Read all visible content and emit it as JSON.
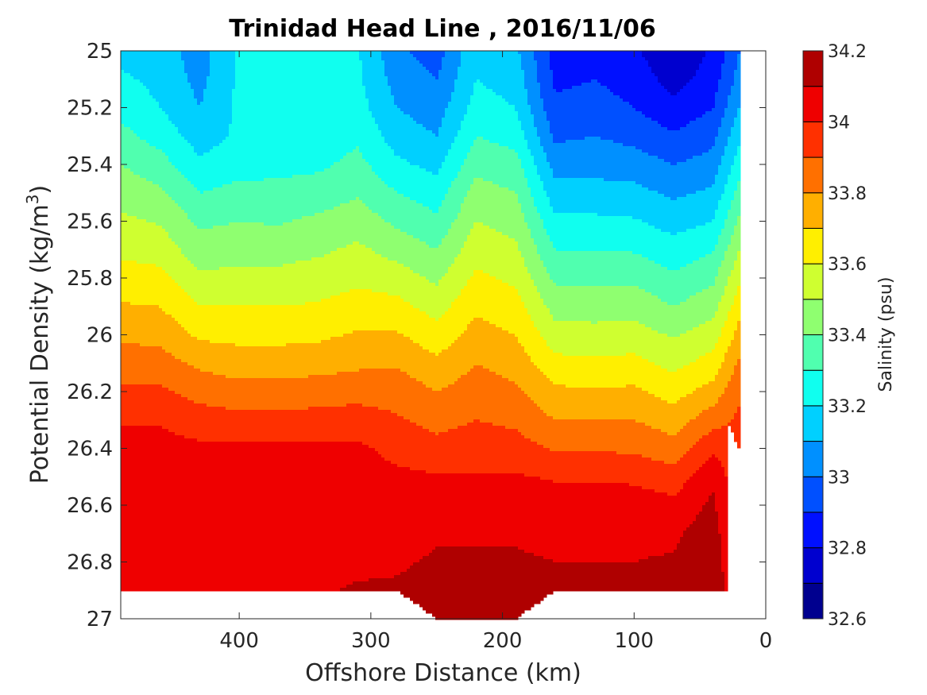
{
  "chart_data": {
    "type": "heatmap",
    "subtype": "filled-contour",
    "title": "Trinidad Head Line , 2016/11/06",
    "xlabel": "Offshore Distance (km)",
    "ylabel": "Potential Density (kg/m",
    "ylabel_sup": "3",
    "ylabel_close": ")",
    "colorbar_label": "Salinity (psu)",
    "xlim": [
      490,
      0
    ],
    "x_reversed": true,
    "ylim": [
      25,
      27
    ],
    "y_reversed": true,
    "x_ticks": [
      400,
      300,
      200,
      100,
      0
    ],
    "y_ticks": [
      "25",
      "25.2",
      "25.4",
      "25.6",
      "25.8",
      "26",
      "26.2",
      "26.4",
      "26.6",
      "26.8",
      "27"
    ],
    "colorbar_range": [
      32.6,
      34.2
    ],
    "colorbar_step": 0.1,
    "colorbar_ticks": [
      "32.6",
      "32.8",
      "33",
      "33.2",
      "33.4",
      "33.6",
      "33.8",
      "34",
      "34.2"
    ],
    "colormap": "jet",
    "level_colors": [
      "#00008F",
      "#0000CF",
      "#0010FF",
      "#0050FF",
      "#0090FF",
      "#00D0FF",
      "#10FFEF",
      "#50FFAF",
      "#8FFF70",
      "#CFFF30",
      "#FFEF00",
      "#FFAF00",
      "#FF7000",
      "#FF3000",
      "#EF0000",
      "#AF0000"
    ],
    "no_data_color": "#ffffff",
    "grid": false,
    "grid_x_km": [
      490,
      460,
      430,
      400,
      370,
      340,
      310,
      280,
      250,
      220,
      190,
      160,
      130,
      100,
      70,
      40,
      20
    ],
    "grid_y_sigma": [
      25.0,
      25.1,
      25.2,
      25.3,
      25.4,
      25.5,
      25.6,
      25.7,
      25.8,
      25.9,
      26.0,
      26.1,
      26.2,
      26.3,
      26.4,
      26.5,
      26.6,
      26.7,
      26.8,
      26.9,
      27.0
    ],
    "bottom_limit_sigma": [
      26.9,
      26.9,
      26.9,
      26.9,
      26.9,
      26.9,
      26.9,
      26.9,
      27.0,
      27.0,
      27.0,
      26.9,
      26.9,
      26.9,
      26.9,
      26.9,
      26.9
    ],
    "shallow_limit_x20": 26.3,
    "salinity_profiles": [
      {
        "x": 490,
        "values": [
          33.16,
          33.22,
          33.27,
          33.33,
          33.4,
          33.46,
          33.52,
          33.58,
          33.64,
          33.71,
          33.78,
          33.85,
          33.92,
          33.99,
          34.03,
          34.04,
          34.05,
          34.05,
          34.06,
          34.08,
          34.08
        ]
      },
      {
        "x": 460,
        "values": [
          33.15,
          33.17,
          33.2,
          33.26,
          33.34,
          33.42,
          33.49,
          33.56,
          33.63,
          33.7,
          33.77,
          33.84,
          33.92,
          33.99,
          34.03,
          34.04,
          34.05,
          34.06,
          34.07,
          34.09,
          34.09
        ]
      },
      {
        "x": 430,
        "values": [
          33.05,
          33.07,
          33.1,
          33.15,
          33.22,
          33.3,
          33.38,
          33.44,
          33.52,
          33.6,
          33.68,
          33.78,
          33.86,
          33.95,
          34.02,
          34.04,
          34.05,
          34.06,
          34.07,
          34.09,
          34.09
        ]
      },
      {
        "x": 400,
        "values": [
          33.22,
          33.22,
          33.22,
          33.22,
          33.26,
          33.33,
          33.4,
          33.46,
          33.53,
          33.6,
          33.67,
          33.75,
          33.84,
          33.93,
          34.02,
          34.04,
          34.05,
          34.06,
          34.07,
          34.09,
          34.09
        ]
      },
      {
        "x": 370,
        "values": [
          33.24,
          33.24,
          33.24,
          33.24,
          33.27,
          33.33,
          33.39,
          33.46,
          33.53,
          33.6,
          33.67,
          33.75,
          33.84,
          33.93,
          34.02,
          34.04,
          34.05,
          34.06,
          34.07,
          34.09,
          34.09
        ]
      },
      {
        "x": 340,
        "values": [
          33.24,
          33.24,
          33.24,
          33.24,
          33.28,
          33.35,
          33.42,
          33.48,
          33.55,
          33.61,
          33.68,
          33.76,
          33.85,
          33.94,
          34.02,
          34.04,
          34.05,
          34.06,
          34.07,
          34.09,
          34.09
        ]
      },
      {
        "x": 310,
        "values": [
          33.21,
          33.22,
          33.24,
          33.28,
          33.33,
          33.39,
          33.45,
          33.52,
          33.58,
          33.64,
          33.71,
          33.78,
          33.86,
          33.95,
          34.02,
          34.04,
          34.05,
          34.06,
          34.08,
          34.11,
          34.11
        ]
      },
      {
        "x": 280,
        "values": [
          33.02,
          33.06,
          33.1,
          33.15,
          33.22,
          33.3,
          33.38,
          33.46,
          33.55,
          33.63,
          33.71,
          33.79,
          33.86,
          33.91,
          33.97,
          34.02,
          34.05,
          34.07,
          34.09,
          34.11,
          34.11
        ]
      },
      {
        "x": 250,
        "values": [
          32.95,
          33.0,
          33.05,
          33.1,
          33.17,
          33.25,
          33.32,
          33.4,
          33.48,
          33.56,
          33.64,
          33.72,
          33.8,
          33.87,
          33.93,
          34.01,
          34.06,
          34.09,
          34.11,
          34.13,
          34.13
        ]
      },
      {
        "x": 220,
        "values": [
          33.18,
          33.2,
          33.24,
          33.3,
          33.37,
          33.44,
          33.5,
          33.56,
          33.62,
          33.68,
          33.74,
          33.8,
          33.85,
          33.9,
          33.95,
          34.01,
          34.06,
          34.09,
          34.11,
          34.14,
          34.16
        ]
      },
      {
        "x": 190,
        "values": [
          33.12,
          33.16,
          33.2,
          33.26,
          33.34,
          33.4,
          33.46,
          33.52,
          33.58,
          33.64,
          33.7,
          33.76,
          33.82,
          33.88,
          33.94,
          34.01,
          34.06,
          34.09,
          34.11,
          34.14,
          34.16
        ]
      },
      {
        "x": 160,
        "values": [
          32.86,
          32.88,
          32.92,
          32.98,
          33.06,
          33.14,
          33.22,
          33.3,
          33.38,
          33.46,
          33.54,
          33.63,
          33.72,
          33.8,
          33.89,
          33.99,
          34.05,
          34.08,
          34.1,
          34.12,
          34.12
        ]
      },
      {
        "x": 130,
        "values": [
          32.88,
          32.9,
          32.94,
          33.0,
          33.06,
          33.14,
          33.22,
          33.3,
          33.38,
          33.46,
          33.53,
          33.62,
          33.71,
          33.8,
          33.89,
          33.99,
          34.05,
          34.08,
          34.1,
          34.12,
          34.12
        ]
      },
      {
        "x": 100,
        "values": [
          32.82,
          32.86,
          32.9,
          32.97,
          33.05,
          33.13,
          33.21,
          33.29,
          33.38,
          33.46,
          33.54,
          33.63,
          33.72,
          33.8,
          33.88,
          33.98,
          34.05,
          34.08,
          34.1,
          34.12,
          34.12
        ]
      },
      {
        "x": 70,
        "values": [
          32.7,
          32.76,
          32.83,
          32.91,
          33.0,
          33.08,
          33.16,
          33.24,
          33.32,
          33.4,
          33.49,
          33.57,
          33.66,
          33.75,
          33.84,
          33.94,
          34.03,
          34.08,
          34.11,
          34.13,
          34.13
        ]
      },
      {
        "x": 40,
        "values": [
          32.82,
          32.85,
          32.9,
          32.97,
          33.04,
          33.12,
          33.2,
          33.29,
          33.38,
          33.46,
          33.55,
          33.64,
          33.74,
          33.86,
          33.98,
          34.08,
          34.12,
          34.16,
          34.2,
          34.22,
          34.22
        ]
      },
      {
        "x": 20,
        "values": [
          33.0,
          33.04,
          33.1,
          33.18,
          33.26,
          33.34,
          33.42,
          33.5,
          33.58,
          33.66,
          33.74,
          33.82,
          33.88,
          33.92,
          33.92,
          33.92,
          33.92,
          33.92,
          33.92,
          33.92,
          33.92
        ]
      }
    ]
  }
}
